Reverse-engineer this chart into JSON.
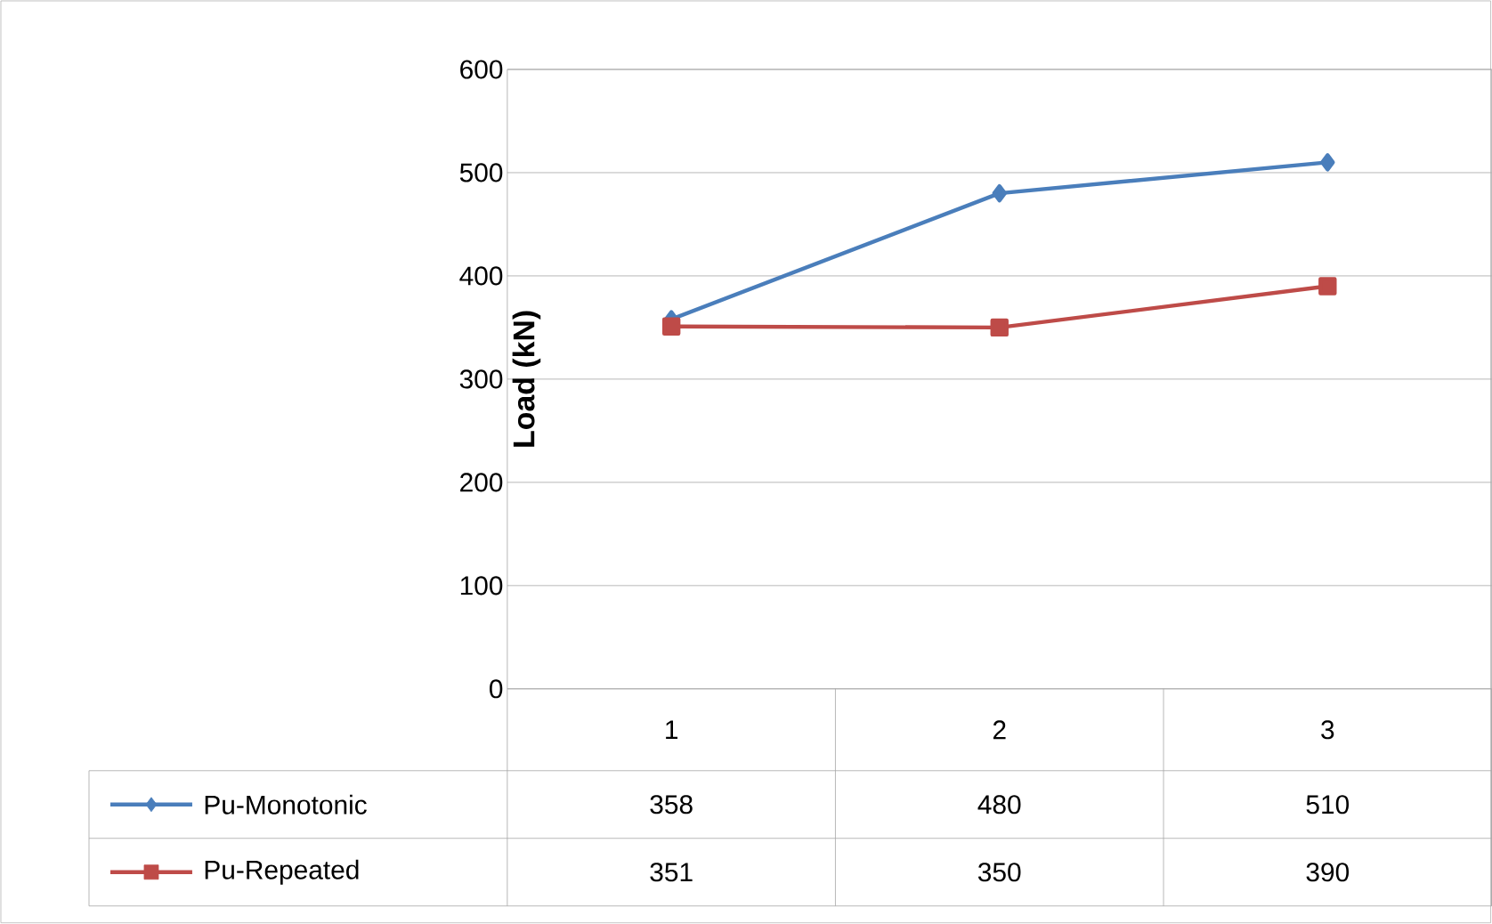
{
  "chart_data": {
    "type": "line",
    "ylabel": "Load (kN)",
    "categories": [
      "1",
      "2",
      "3"
    ],
    "series": [
      {
        "name": "Pu-Monotonic",
        "color": "#4a7ebb",
        "marker": "diamond",
        "values": [
          358,
          480,
          510
        ]
      },
      {
        "name": "Pu-Repeated",
        "color": "#be4b48",
        "marker": "square",
        "values": [
          351,
          350,
          390
        ]
      }
    ],
    "ylim": [
      0,
      600
    ],
    "yticks": [
      0,
      100,
      200,
      300,
      400,
      500,
      600
    ],
    "grid": "y",
    "legend": "bottom",
    "data_labels": true
  }
}
